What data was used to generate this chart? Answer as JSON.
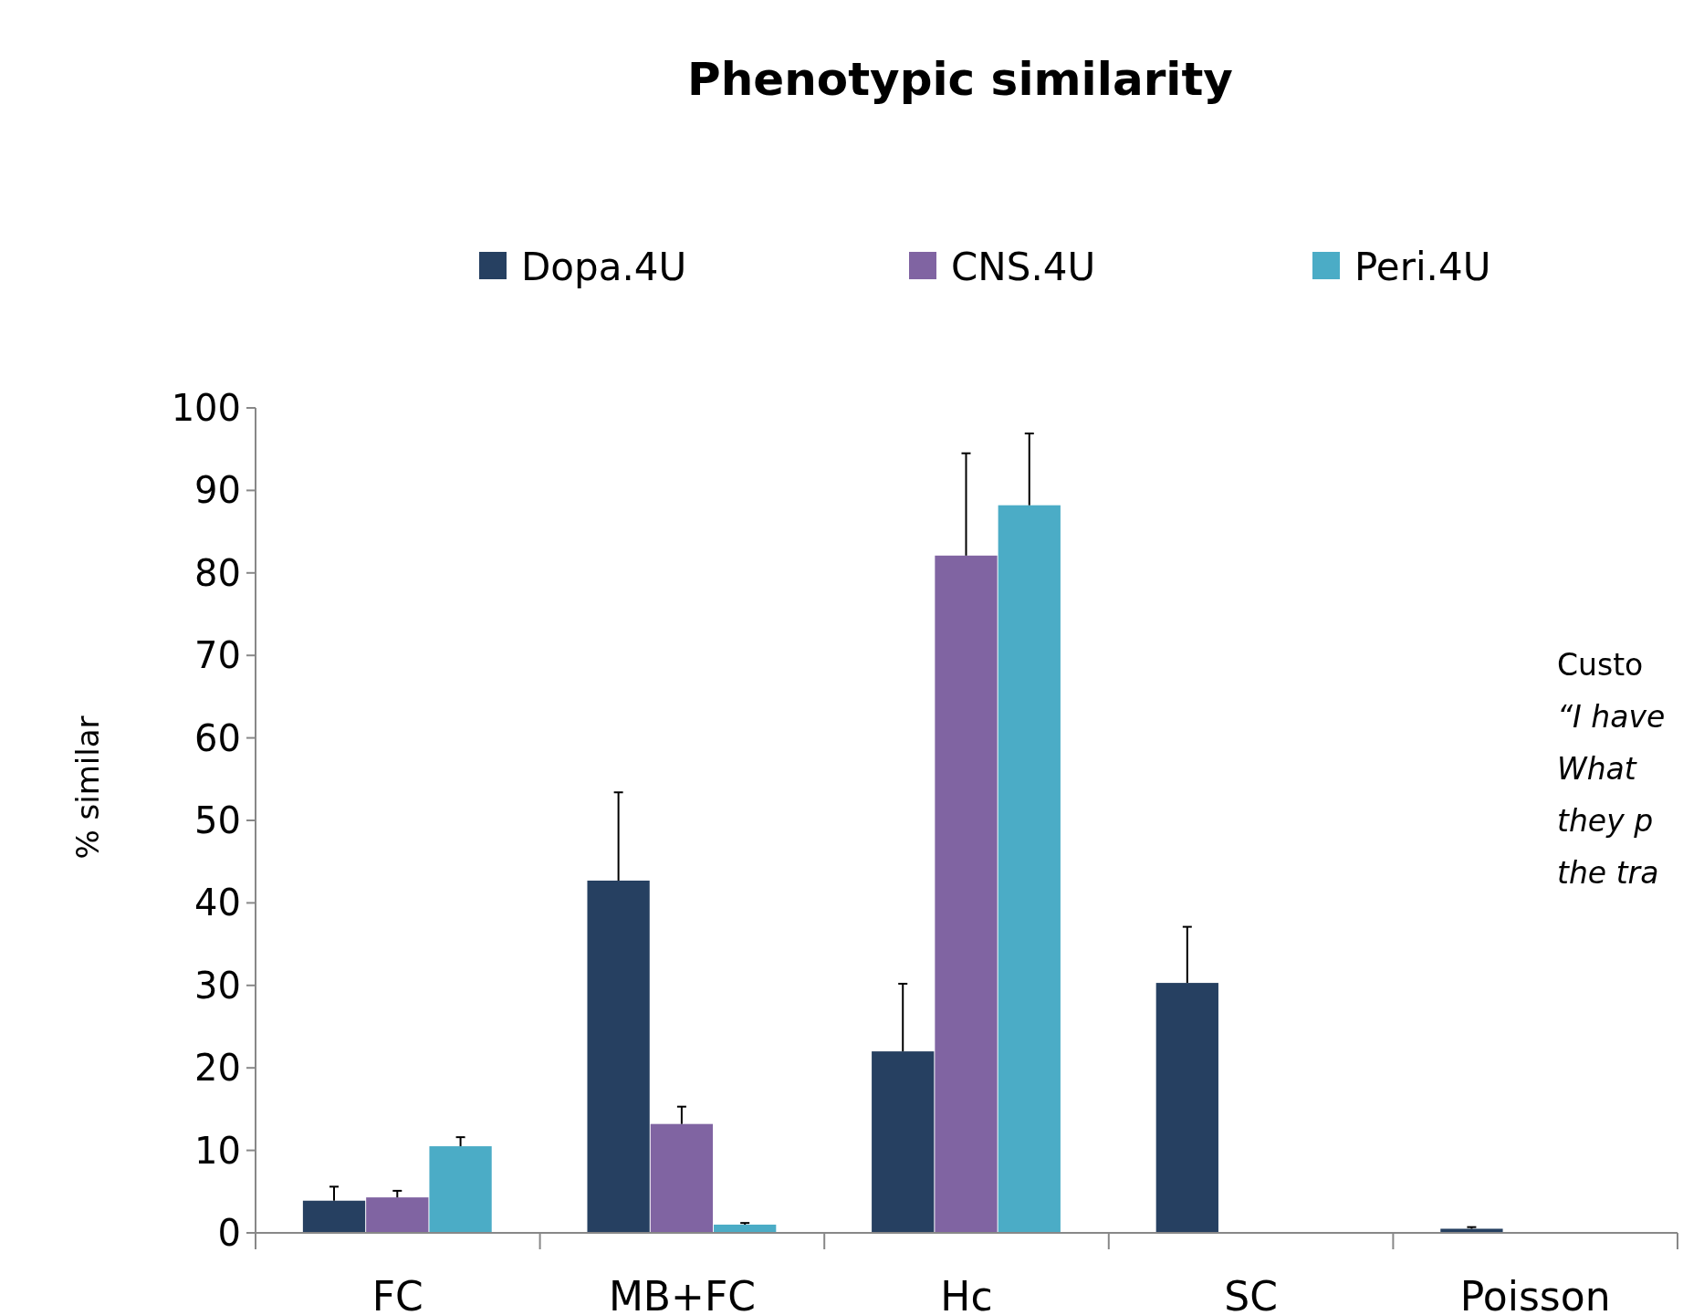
{
  "chart_data": {
    "type": "bar",
    "title": "Phenotypic similarity",
    "ylabel": "% similar",
    "categories": [
      "FC",
      "MB+FC",
      "Hc",
      "SC",
      "Poisson"
    ],
    "series": [
      {
        "name": "Dopa.4U",
        "color": "#264061",
        "values": [
          3.9,
          42.7,
          22.0,
          30.3,
          0.5
        ],
        "errors": [
          [
            3.9,
            5.6
          ],
          [
            42.7,
            53.4
          ],
          [
            22.0,
            30.2
          ],
          [
            30.3,
            37.1
          ],
          [
            0.5,
            0.7
          ]
        ]
      },
      {
        "name": "CNS.4U",
        "color": "#8064a2",
        "values": [
          4.3,
          13.2,
          82.1,
          0,
          0
        ],
        "errors": [
          [
            4.3,
            5.1
          ],
          [
            13.2,
            15.3
          ],
          [
            82.1,
            94.5
          ],
          null,
          null
        ]
      },
      {
        "name": "Peri.4U",
        "color": "#4bacc6",
        "values": [
          10.5,
          1.0,
          88.2,
          0,
          0
        ],
        "errors": [
          [
            10.5,
            11.6
          ],
          [
            1.0,
            1.2
          ],
          [
            88.2,
            96.9
          ],
          null,
          null
        ]
      }
    ],
    "ylim": [
      0,
      100
    ],
    "yticks": [
      0,
      10,
      20,
      30,
      40,
      50,
      60,
      70,
      80,
      90,
      100
    ],
    "grid": false,
    "legend": "top",
    "annotations": [
      "Custo",
      "“I have",
      "What",
      "they p",
      "the tra"
    ]
  }
}
